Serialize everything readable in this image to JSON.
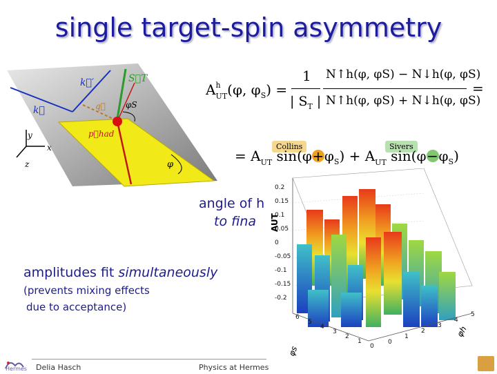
{
  "slide": {
    "title": "single target-spin asymmetry",
    "angle_text_line1": "angle of h",
    "angle_text_line2": "to fina",
    "amplitudes_text": "amplitudes fit simultaneously",
    "amplitudes_plain": "amplitudes fit ",
    "amplitudes_italic": "simultaneously",
    "prevents_line1": "(prevents mixing effects",
    "prevents_line2": "due to acceptance)"
  },
  "formula": {
    "lhs": "A",
    "lhs_sup": "h",
    "lhs_sub": "UT",
    "lhs_args": "(φ, φ",
    "lhs_args_sub": "S",
    "lhs_args_close": ") =",
    "numerator_one": "1",
    "denominator_st": "| S",
    "denominator_st_sub": "T",
    "denominator_st_close": " |",
    "num_expr": "N↑h(φ, φS) − N↓h(φ, φS)",
    "den_expr": "N↑h(φ, φS) + N↓h(φ, φS)",
    "equals": "=",
    "collins_label": "Collins",
    "sivers_label": "Sivers",
    "line2_prefix": "= A",
    "line2_sub": "UT",
    "sin1": "sin(φ",
    "plus": "+",
    "phi_s1": "φ",
    "phi_s_sub": "S",
    "close1": ") + A",
    "sin2": "sin(φ",
    "minus": "−",
    "phi_s2": "φ",
    "close2": ")"
  },
  "diagram": {
    "label_k_prime": "k⃗′",
    "label_k": "k⃗",
    "label_st": "S⃗T",
    "label_q": "q⃗",
    "label_phi_s": "φS",
    "label_p_had": "p⃗had",
    "label_y": "y",
    "label_x": "x",
    "label_z": "z",
    "label_phi": "φ"
  },
  "plot3d": {
    "z_axis_label": "AUT",
    "z_ticks": [
      "0.2",
      "0.15",
      "0.1",
      "0.05",
      "0",
      "-0.05",
      "-0.1",
      "-0.15",
      "-0.2"
    ],
    "phi_s_axis_label": "φs",
    "phi_h_axis_label": "φh",
    "phi_s_ticks": [
      "6",
      "5",
      "4",
      "3",
      "2",
      "1",
      "0"
    ],
    "phi_h_ticks": [
      "5",
      "4",
      "3",
      "2",
      "1",
      "0"
    ],
    "colors": {
      "high": "#e83a1a",
      "mid": "#e8e030",
      "low": "#3aa0e0",
      "base": "#1c40c0"
    }
  },
  "footer": {
    "author": "Delia Hasch",
    "talk": "Physics at Hermes",
    "logo_text": "Hermes"
  }
}
